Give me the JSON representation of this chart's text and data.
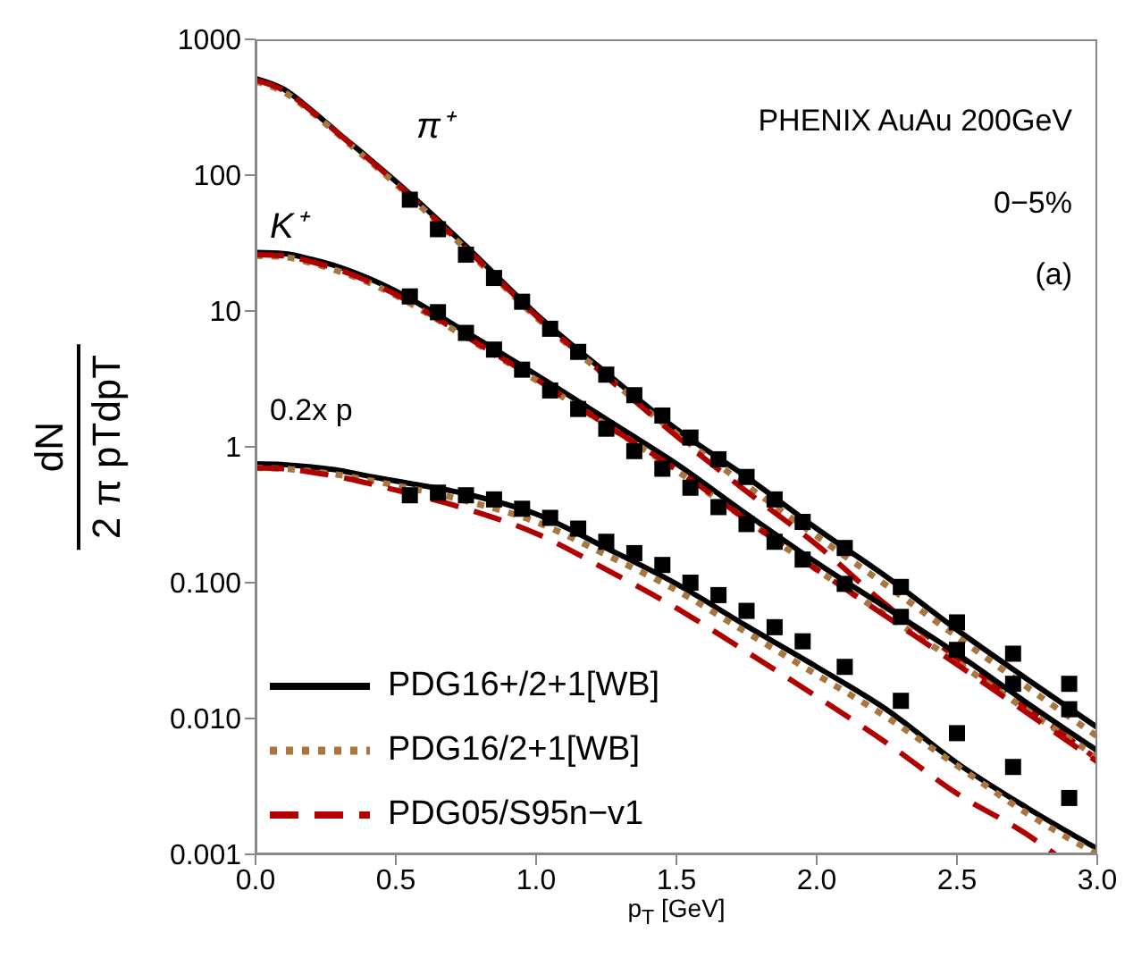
{
  "chart_data": {
    "type": "line",
    "xlabel": "p$_{T}$ [GeV]",
    "ylabel": "dN/2 π pTdpT",
    "log": "y",
    "xlim": [
      0,
      3
    ],
    "ylim": [
      0.001,
      1000
    ],
    "xticks": [
      {
        "value": 0,
        "label": "0.0"
      },
      {
        "value": 0.5,
        "label": "0.5"
      },
      {
        "value": 1,
        "label": "1.0"
      },
      {
        "value": 1.5,
        "label": "1.5"
      },
      {
        "value": 2,
        "label": "2.0"
      },
      {
        "value": 2.5,
        "label": "2.5"
      },
      {
        "value": 3,
        "label": "3.0"
      }
    ],
    "yticks": [
      {
        "value": 0.001,
        "label": "0.001"
      },
      {
        "value": 0.01,
        "label": "0.010"
      },
      {
        "value": 0.1,
        "label": "0.100"
      },
      1,
      10,
      100,
      1000
    ],
    "legend": "bottom left",
    "annotations": [
      "π⁺",
      "K⁺",
      "0.2x p",
      "PHENIX AuAu 200GeV",
      "0−5%",
      "(a)"
    ],
    "series": [
      {
        "name": "PDG16+/2+1[WB]",
        "line_style": "solid",
        "color": "#000000",
        "x": [
          0,
          0.1,
          0.2,
          0.3,
          0.4,
          0.5,
          0.75,
          1,
          1.25,
          1.5,
          1.75,
          2,
          2.25,
          2.5,
          2.75,
          3
        ],
        "values": [
          515,
          430,
          300,
          200,
          135,
          90,
          30,
          9.5,
          3.5,
          1.35,
          0.6,
          0.25,
          0.11,
          0.045,
          0.0195,
          0.0086
        ]
      },
      {
        "name": "PDG16/2+1[WB]",
        "line_style": "dotted",
        "color": "#a8763e",
        "x": [
          0,
          0.1,
          0.2,
          0.3,
          0.4,
          0.5,
          0.75,
          1,
          1.25,
          1.5,
          1.75,
          2,
          2.25,
          2.5,
          2.75,
          3
        ],
        "values": [
          490,
          410,
          290,
          195,
          130,
          86,
          28.5,
          9,
          3.3,
          1.25,
          0.52,
          0.22,
          0.095,
          0.04,
          0.017,
          0.0074
        ]
      },
      {
        "name": "PDG05/S95n−v1",
        "line_style": "dashed",
        "color": "#b00000",
        "x": [
          0,
          0.1,
          0.2,
          0.3,
          0.4,
          0.5,
          0.75,
          1,
          1.25,
          1.5,
          1.75,
          2,
          2.25,
          2.5,
          2.75,
          3
        ],
        "values": [
          500,
          420,
          295,
          198,
          133,
          88,
          29,
          9.2,
          3.3,
          1.2,
          0.47,
          0.19,
          0.068,
          0.028,
          0.012,
          0.005
        ]
      },
      {
        "type": "line",
        "line_style": "solid",
        "color": "#000000",
        "x": [
          0,
          0.1,
          0.2,
          0.3,
          0.4,
          0.5,
          0.75,
          1,
          1.25,
          1.5,
          1.75,
          2,
          2.25,
          2.5,
          2.75,
          3
        ],
        "values": [
          27,
          26.5,
          24,
          21,
          17.5,
          14,
          7,
          3.4,
          1.6,
          0.75,
          0.32,
          0.14,
          0.065,
          0.03,
          0.013,
          0.0058
        ]
      },
      {
        "type": "line",
        "line_style": "dotted",
        "color": "#a8763e",
        "x": [
          0,
          0.1,
          0.2,
          0.3,
          0.4,
          0.5,
          0.75,
          1,
          1.25,
          1.5,
          1.75,
          2,
          2.25,
          2.5,
          2.75,
          3
        ],
        "values": [
          25.5,
          25,
          22.5,
          19.5,
          16.3,
          13,
          6.4,
          3.1,
          1.45,
          0.67,
          0.29,
          0.125,
          0.057,
          0.026,
          0.0115,
          0.0052
        ]
      },
      {
        "type": "line",
        "line_style": "dashed",
        "color": "#b00000",
        "x": [
          0,
          0.1,
          0.2,
          0.3,
          0.4,
          0.5,
          0.75,
          1,
          1.25,
          1.5,
          1.75,
          2,
          2.25,
          2.5,
          2.75,
          3
        ],
        "values": [
          26,
          25.5,
          23,
          20,
          16.6,
          13.2,
          6.5,
          3.15,
          1.45,
          0.68,
          0.29,
          0.125,
          0.056,
          0.025,
          0.011,
          0.0048
        ]
      },
      {
        "type": "line",
        "line_style": "solid",
        "color": "#000000",
        "x": [
          0,
          0.1,
          0.2,
          0.3,
          0.4,
          0.5,
          0.75,
          1,
          1.25,
          1.5,
          1.75,
          2,
          2.25,
          2.5,
          2.75,
          3
        ],
        "values": [
          0.75,
          0.74,
          0.71,
          0.67,
          0.61,
          0.56,
          0.45,
          0.32,
          0.18,
          0.098,
          0.048,
          0.024,
          0.0116,
          0.0047,
          0.0022,
          0.0011
        ]
      },
      {
        "type": "line",
        "line_style": "dotted",
        "color": "#a8763e",
        "x": [
          0,
          0.1,
          0.2,
          0.3,
          0.4,
          0.5,
          0.75,
          1,
          1.25,
          1.5,
          1.75,
          2,
          2.25,
          2.5,
          2.75,
          3
        ],
        "values": [
          0.7,
          0.69,
          0.66,
          0.62,
          0.57,
          0.52,
          0.4,
          0.28,
          0.16,
          0.088,
          0.043,
          0.021,
          0.0102,
          0.0045,
          0.002,
          0.001
        ]
      },
      {
        "type": "line",
        "line_style": "dashed",
        "color": "#b00000",
        "x": [
          0,
          0.1,
          0.2,
          0.3,
          0.4,
          0.5,
          0.75,
          1,
          1.25,
          1.5,
          1.75,
          2,
          2.25,
          2.5,
          2.75,
          2.85
        ],
        "values": [
          0.7,
          0.69,
          0.65,
          0.6,
          0.54,
          0.48,
          0.35,
          0.23,
          0.125,
          0.065,
          0.031,
          0.0145,
          0.0066,
          0.0028,
          0.0014,
          0.001
        ]
      },
      {
        "type": "scatter",
        "marker": "square",
        "color": "#000000",
        "x": [
          0.55,
          0.65,
          0.75,
          0.85,
          0.95,
          1.05,
          1.15,
          1.25,
          1.35,
          1.45,
          1.55,
          1.65,
          1.75,
          1.85,
          1.95,
          2.1,
          2.3,
          2.5,
          2.7,
          2.9
        ],
        "values": [
          66,
          40,
          26,
          17.5,
          11.7,
          7.4,
          5,
          3.4,
          2.4,
          1.7,
          1.17,
          0.81,
          0.6,
          0.41,
          0.28,
          0.18,
          0.093,
          0.051,
          0.03,
          0.018
        ]
      },
      {
        "type": "scatter",
        "marker": "square",
        "color": "#000000",
        "x": [
          0.55,
          0.65,
          0.75,
          0.85,
          0.95,
          1.05,
          1.15,
          1.25,
          1.35,
          1.45,
          1.55,
          1.65,
          1.75,
          1.85,
          1.95,
          2.1,
          2.3,
          2.5,
          2.7,
          2.9
        ],
        "values": [
          12.8,
          9.8,
          6.9,
          5.2,
          3.7,
          2.6,
          1.9,
          1.36,
          0.93,
          0.69,
          0.5,
          0.36,
          0.27,
          0.2,
          0.148,
          0.098,
          0.056,
          0.032,
          0.018,
          0.0117
        ]
      },
      {
        "type": "scatter",
        "marker": "square",
        "color": "#000000",
        "x": [
          0.55,
          0.65,
          0.75,
          0.85,
          0.95,
          1.05,
          1.15,
          1.25,
          1.35,
          1.45,
          1.55,
          1.65,
          1.75,
          1.85,
          1.95,
          2.1,
          2.3,
          2.5,
          2.7,
          2.9
        ],
        "values": [
          0.44,
          0.46,
          0.44,
          0.41,
          0.35,
          0.3,
          0.25,
          0.2,
          0.165,
          0.135,
          0.1,
          0.081,
          0.062,
          0.047,
          0.037,
          0.024,
          0.0135,
          0.0078,
          0.0044,
          0.0026
        ]
      }
    ]
  }
}
